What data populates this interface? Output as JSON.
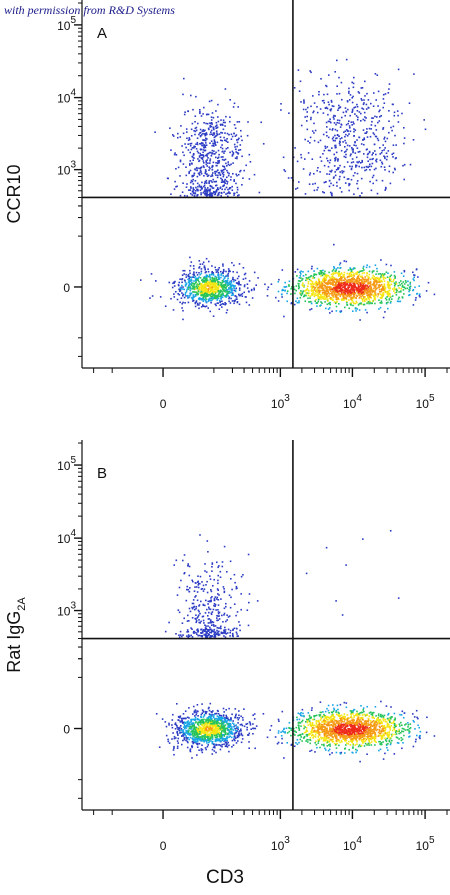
{
  "credit_text": "with permission from R&D Systems",
  "chart_data": [
    {
      "type": "scatter",
      "panel_label": "A",
      "ylabel": "CCR10",
      "ylabel_sub": "",
      "xlabel": "CD3",
      "x_scale": "biexponential",
      "y_scale": "biexponential",
      "x_ticks": [
        {
          "value": 0,
          "label": "0"
        },
        {
          "value": 1000,
          "label": "10",
          "exp": "3"
        },
        {
          "value": 10000,
          "label": "10",
          "exp": "4"
        },
        {
          "value": 100000,
          "label": "10",
          "exp": "5"
        }
      ],
      "y_ticks": [
        {
          "value": 0,
          "label": "0"
        },
        {
          "value": 1000,
          "label": "10",
          "exp": "3"
        },
        {
          "value": 10000,
          "label": "10",
          "exp": "4"
        },
        {
          "value": 100000,
          "label": "10",
          "exp": "5"
        }
      ],
      "quadrant_gate": {
        "x": 1500,
        "y": 400
      },
      "populations": [
        {
          "name": "CD3- CCR10-",
          "x_center": 80,
          "y_center": 0,
          "n": 900,
          "density": "medium"
        },
        {
          "name": "CD3- CCR10+",
          "x_center": 80,
          "y_center": 1200,
          "n": 650,
          "density": "low"
        },
        {
          "name": "CD3+ CCR10-",
          "x_center": 9000,
          "y_center": 0,
          "n": 1500,
          "density": "high"
        },
        {
          "name": "CD3+ CCR10+",
          "x_center": 9000,
          "y_center": 2500,
          "n": 550,
          "density": "low"
        }
      ],
      "grid": false,
      "legend": "none"
    },
    {
      "type": "scatter",
      "panel_label": "B",
      "ylabel": "Rat IgG",
      "ylabel_sub": "2A",
      "xlabel": "CD3",
      "x_scale": "biexponential",
      "y_scale": "biexponential",
      "x_ticks": [
        {
          "value": 0,
          "label": "0"
        },
        {
          "value": 1000,
          "label": "10",
          "exp": "3"
        },
        {
          "value": 10000,
          "label": "10",
          "exp": "4"
        },
        {
          "value": 100000,
          "label": "10",
          "exp": "5"
        }
      ],
      "y_ticks": [
        {
          "value": 0,
          "label": "0"
        },
        {
          "value": 1000,
          "label": "10",
          "exp": "3"
        },
        {
          "value": 10000,
          "label": "10",
          "exp": "4"
        },
        {
          "value": 100000,
          "label": "10",
          "exp": "5"
        }
      ],
      "quadrant_gate": {
        "x": 1500,
        "y": 400
      },
      "populations": [
        {
          "name": "CD3- isotype-",
          "x_center": 80,
          "y_center": 0,
          "n": 1100,
          "density": "medium"
        },
        {
          "name": "CD3- isotype+",
          "x_center": 80,
          "y_center": 700,
          "n": 380,
          "density": "low"
        },
        {
          "name": "CD3+ isotype-",
          "x_center": 9000,
          "y_center": 0,
          "n": 1500,
          "density": "high"
        },
        {
          "name": "CD3+ isotype+",
          "x_center": 9000,
          "y_center": 3000,
          "n": 8,
          "density": "sparse"
        }
      ],
      "grid": false,
      "legend": "none"
    }
  ],
  "colors": {
    "axis": "#111111",
    "gate": "#111111",
    "density_low": "#2d3cc4",
    "density_mid_low": "#19a6e6",
    "density_mid": "#27c45a",
    "density_mid_high": "#f5e612",
    "density_high": "#ee2a1a"
  }
}
